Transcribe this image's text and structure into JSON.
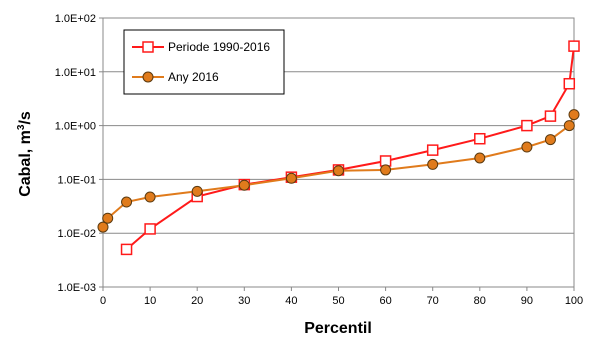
{
  "chart_data": {
    "type": "line",
    "xlabel": "Percentil",
    "ylabel_main": "Cabal, m",
    "ylabel_sup": "3",
    "ylabel_tail": "/s",
    "xlim": [
      0,
      100
    ],
    "ylim": [
      0.001,
      100
    ],
    "y_scale": "log",
    "grid": "horizontal",
    "legend_position": "top-left",
    "x_ticks": [
      "0",
      "10",
      "20",
      "30",
      "40",
      "50",
      "60",
      "70",
      "80",
      "90",
      "100"
    ],
    "y_ticks": [
      "1.0E-03",
      "1.0E-02",
      "1.0E-01",
      "1.0E+00",
      "1.0E+01",
      "1.0E+02"
    ],
    "series": [
      {
        "name": "Periode 1990-2016",
        "color": "#ff1a1a",
        "marker": "square-open",
        "x": [
          5,
          10,
          20,
          30,
          40,
          50,
          60,
          70,
          80,
          90,
          95,
          99,
          100
        ],
        "y": [
          0.005,
          0.012,
          0.048,
          0.08,
          0.11,
          0.15,
          0.22,
          0.35,
          0.57,
          1.0,
          1.5,
          6.0,
          30.0
        ]
      },
      {
        "name": "Any 2016",
        "color": "#e07b1c",
        "marker": "circle-filled",
        "x": [
          0,
          1,
          5,
          10,
          20,
          30,
          40,
          50,
          60,
          70,
          80,
          90,
          95,
          99,
          100
        ],
        "y": [
          0.013,
          0.019,
          0.038,
          0.047,
          0.06,
          0.078,
          0.105,
          0.145,
          0.15,
          0.19,
          0.25,
          0.4,
          0.55,
          1.0,
          1.6
        ]
      }
    ]
  }
}
